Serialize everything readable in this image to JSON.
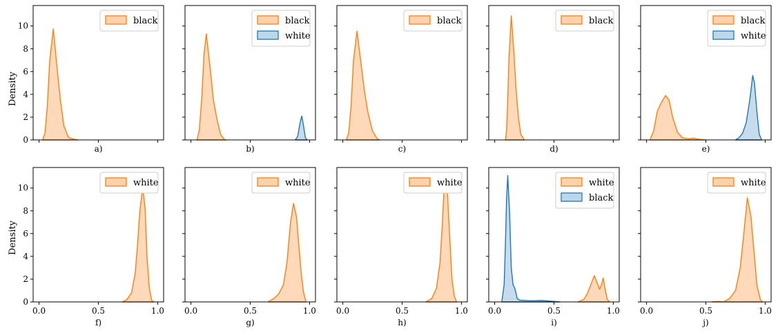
{
  "figure": {
    "ylabel": "Density",
    "xticks": [
      "0.0",
      "0.5",
      "1.0"
    ],
    "yticks": [
      "0",
      "2",
      "4",
      "6",
      "8",
      "10"
    ],
    "colors": {
      "orange": "#ff7f0e",
      "orange_fill": "#ffd2ad",
      "blue": "#1f77b4",
      "blue_fill": "#bcd6ea"
    }
  },
  "chart_data": [
    {
      "type": "area",
      "caption": "a)",
      "xlim": [
        -0.05,
        1.05
      ],
      "ylim": [
        0,
        11.8
      ],
      "grid": false,
      "legend_position": "top-right",
      "series": [
        {
          "name": "black",
          "color": "orange",
          "points": [
            [
              0.03,
              0
            ],
            [
              0.05,
              0.6
            ],
            [
              0.07,
              3
            ],
            [
              0.09,
              7
            ],
            [
              0.12,
              9.75
            ],
            [
              0.15,
              6.5
            ],
            [
              0.18,
              3.5
            ],
            [
              0.21,
              1.2
            ],
            [
              0.25,
              0.2
            ],
            [
              0.3,
              0.05
            ],
            [
              0.33,
              0
            ]
          ]
        }
      ]
    },
    {
      "type": "area",
      "caption": "b)",
      "xlim": [
        -0.05,
        1.05
      ],
      "ylim": [
        0,
        11.8
      ],
      "grid": false,
      "legend_position": "top-right",
      "series": [
        {
          "name": "black",
          "color": "orange",
          "points": [
            [
              0.05,
              0
            ],
            [
              0.07,
              0.8
            ],
            [
              0.09,
              3.5
            ],
            [
              0.11,
              7.5
            ],
            [
              0.13,
              9.3
            ],
            [
              0.16,
              6.5
            ],
            [
              0.19,
              3.5
            ],
            [
              0.22,
              1.8
            ],
            [
              0.25,
              0.5
            ],
            [
              0.28,
              0.05
            ],
            [
              0.3,
              0
            ]
          ]
        },
        {
          "name": "white",
          "color": "blue",
          "points": [
            [
              0.88,
              0
            ],
            [
              0.9,
              0.3
            ],
            [
              0.92,
              1.5
            ],
            [
              0.935,
              2.1
            ],
            [
              0.95,
              1.2
            ],
            [
              0.965,
              0.2
            ],
            [
              0.98,
              0
            ]
          ]
        }
      ]
    },
    {
      "type": "area",
      "caption": "c)",
      "xlim": [
        -0.05,
        1.05
      ],
      "ylim": [
        0,
        11.8
      ],
      "grid": false,
      "legend_position": "top-right",
      "series": [
        {
          "name": "black",
          "color": "orange",
          "points": [
            [
              0.03,
              0
            ],
            [
              0.05,
              0.6
            ],
            [
              0.07,
              3
            ],
            [
              0.09,
              7
            ],
            [
              0.12,
              9.55
            ],
            [
              0.15,
              7
            ],
            [
              0.18,
              4.5
            ],
            [
              0.21,
              2.5
            ],
            [
              0.25,
              0.8
            ],
            [
              0.29,
              0.1
            ],
            [
              0.31,
              0
            ]
          ]
        }
      ]
    },
    {
      "type": "area",
      "caption": "d)",
      "xlim": [
        -0.05,
        1.05
      ],
      "ylim": [
        0,
        11.8
      ],
      "grid": false,
      "legend_position": "top-right",
      "series": [
        {
          "name": "black",
          "color": "orange",
          "points": [
            [
              0.09,
              0
            ],
            [
              0.1,
              0.8
            ],
            [
              0.11,
              3.5
            ],
            [
              0.12,
              7
            ],
            [
              0.14,
              10.9
            ],
            [
              0.16,
              8
            ],
            [
              0.18,
              4.5
            ],
            [
              0.2,
              2
            ],
            [
              0.22,
              0.5
            ],
            [
              0.25,
              0
            ]
          ]
        }
      ]
    },
    {
      "type": "area",
      "caption": "e)",
      "xlim": [
        -0.05,
        1.05
      ],
      "ylim": [
        0,
        11.8
      ],
      "grid": false,
      "legend_position": "top-right",
      "series": [
        {
          "name": "black",
          "color": "orange",
          "points": [
            [
              0.03,
              0
            ],
            [
              0.06,
              0.8
            ],
            [
              0.09,
              2.5
            ],
            [
              0.12,
              3.2
            ],
            [
              0.16,
              3.9
            ],
            [
              0.19,
              3.5
            ],
            [
              0.22,
              2
            ],
            [
              0.26,
              0.7
            ],
            [
              0.3,
              0.2
            ],
            [
              0.35,
              0.1
            ],
            [
              0.4,
              0.15
            ],
            [
              0.45,
              0.05
            ],
            [
              0.5,
              0
            ]
          ]
        },
        {
          "name": "white",
          "color": "blue",
          "points": [
            [
              0.75,
              0
            ],
            [
              0.78,
              0.2
            ],
            [
              0.81,
              0.6
            ],
            [
              0.84,
              1.5
            ],
            [
              0.87,
              3.5
            ],
            [
              0.895,
              5.65
            ],
            [
              0.91,
              5
            ],
            [
              0.93,
              2.5
            ],
            [
              0.95,
              0.5
            ],
            [
              0.97,
              0
            ]
          ]
        }
      ]
    },
    {
      "type": "area",
      "caption": "f)",
      "xlim": [
        -0.05,
        1.05
      ],
      "ylim": [
        0,
        11.8
      ],
      "grid": false,
      "legend_position": "top-right",
      "series": [
        {
          "name": "white",
          "color": "orange",
          "points": [
            [
              0.7,
              0
            ],
            [
              0.74,
              0.2
            ],
            [
              0.78,
              0.8
            ],
            [
              0.81,
              2.5
            ],
            [
              0.83,
              5
            ],
            [
              0.85,
              8
            ],
            [
              0.875,
              10.1
            ],
            [
              0.895,
              8
            ],
            [
              0.91,
              4
            ],
            [
              0.93,
              1.2
            ],
            [
              0.95,
              0.1
            ],
            [
              0.97,
              0
            ]
          ]
        }
      ]
    },
    {
      "type": "area",
      "caption": "g)",
      "xlim": [
        -0.05,
        1.05
      ],
      "ylim": [
        0,
        11.8
      ],
      "grid": false,
      "legend_position": "top-right",
      "series": [
        {
          "name": "white",
          "color": "orange",
          "points": [
            [
              0.65,
              0
            ],
            [
              0.7,
              0.3
            ],
            [
              0.74,
              0.7
            ],
            [
              0.78,
              1.5
            ],
            [
              0.81,
              3.5
            ],
            [
              0.84,
              7
            ],
            [
              0.865,
              8.65
            ],
            [
              0.89,
              7.5
            ],
            [
              0.91,
              5
            ],
            [
              0.93,
              2.5
            ],
            [
              0.95,
              0.8
            ],
            [
              0.97,
              0
            ]
          ]
        }
      ]
    },
    {
      "type": "area",
      "caption": "h)",
      "xlim": [
        -0.05,
        1.05
      ],
      "ylim": [
        0,
        11.8
      ],
      "grid": false,
      "legend_position": "top-right",
      "series": [
        {
          "name": "white",
          "color": "orange",
          "points": [
            [
              0.7,
              0
            ],
            [
              0.75,
              0.3
            ],
            [
              0.79,
              1.2
            ],
            [
              0.82,
              3.5
            ],
            [
              0.84,
              7
            ],
            [
              0.86,
              11.3
            ],
            [
              0.88,
              10
            ],
            [
              0.9,
              6
            ],
            [
              0.92,
              2
            ],
            [
              0.94,
              0.5
            ],
            [
              0.96,
              0
            ]
          ]
        }
      ]
    },
    {
      "type": "area",
      "caption": "i)",
      "xlim": [
        -0.05,
        1.05
      ],
      "ylim": [
        0,
        11.8
      ],
      "grid": false,
      "legend_position": "top-right",
      "series": [
        {
          "name": "white",
          "color": "orange",
          "points": [
            [
              0.7,
              0
            ],
            [
              0.75,
              0.2
            ],
            [
              0.78,
              0.7
            ],
            [
              0.81,
              1.5
            ],
            [
              0.84,
              2.3
            ],
            [
              0.87,
              1.5
            ],
            [
              0.885,
              1.1
            ],
            [
              0.9,
              1.5
            ],
            [
              0.915,
              2.1
            ],
            [
              0.93,
              1.2
            ],
            [
              0.95,
              0.2
            ],
            [
              0.97,
              0
            ]
          ]
        },
        {
          "name": "black",
          "color": "blue",
          "points": [
            [
              0.06,
              0
            ],
            [
              0.08,
              1.5
            ],
            [
              0.09,
              5
            ],
            [
              0.1,
              9
            ],
            [
              0.11,
              11.1
            ],
            [
              0.125,
              8
            ],
            [
              0.14,
              3
            ],
            [
              0.155,
              1.5
            ],
            [
              0.17,
              1.2
            ],
            [
              0.19,
              0.3
            ],
            [
              0.21,
              0.15
            ],
            [
              0.3,
              0.1
            ],
            [
              0.4,
              0.12
            ],
            [
              0.5,
              0.05
            ],
            [
              0.55,
              0
            ]
          ]
        }
      ]
    },
    {
      "type": "area",
      "caption": "j)",
      "xlim": [
        -0.05,
        1.05
      ],
      "ylim": [
        0,
        11.8
      ],
      "grid": false,
      "legend_position": "top-right",
      "series": [
        {
          "name": "white",
          "color": "orange",
          "points": [
            [
              0.55,
              0
            ],
            [
              0.6,
              0.05
            ],
            [
              0.65,
              0
            ],
            [
              0.7,
              0.3
            ],
            [
              0.75,
              1
            ],
            [
              0.79,
              3
            ],
            [
              0.82,
              6
            ],
            [
              0.85,
              9.15
            ],
            [
              0.88,
              7.5
            ],
            [
              0.91,
              4
            ],
            [
              0.93,
              1.5
            ],
            [
              0.96,
              0.2
            ],
            [
              0.98,
              0
            ]
          ]
        }
      ]
    }
  ]
}
